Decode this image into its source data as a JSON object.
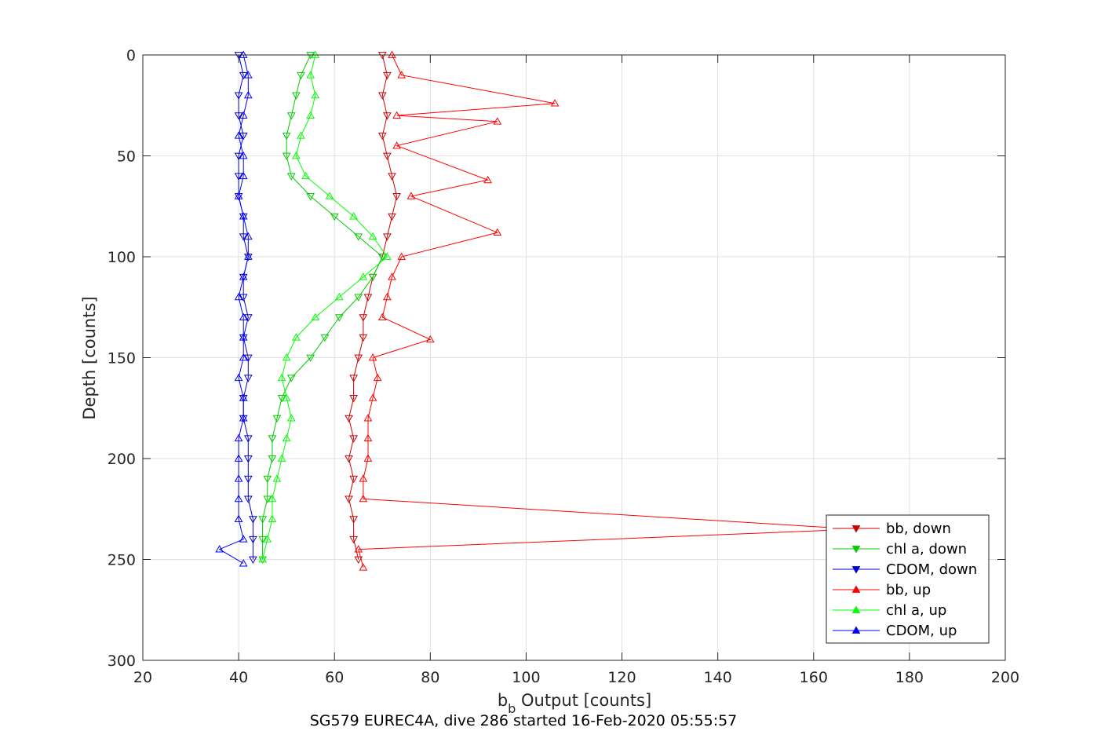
{
  "chart_data": {
    "type": "line",
    "xlabel": "b",
    "xlabel_sub": "b",
    "xlabel_rest": " Output [counts]",
    "ylabel": "Depth [counts]",
    "caption": "SG579 EUREC4A, dive 286 started 16-Feb-2020 05:55:57",
    "xlim": [
      20,
      200
    ],
    "ylim": [
      0,
      300
    ],
    "y_reversed": true,
    "grid": true,
    "legend_position": "bottom-right",
    "x_ticks": [
      "20",
      "40",
      "60",
      "80",
      "100",
      "120",
      "140",
      "160",
      "180",
      "200"
    ],
    "y_ticks": [
      "0",
      "50",
      "100",
      "150",
      "200",
      "250",
      "300"
    ],
    "series": [
      {
        "name": "bb, down",
        "color": "#cc0000",
        "marker": "triangle-down",
        "points": [
          [
            70,
            0
          ],
          [
            71,
            10
          ],
          [
            70,
            20
          ],
          [
            71,
            30
          ],
          [
            70,
            40
          ],
          [
            71,
            50
          ],
          [
            72,
            60
          ],
          [
            73,
            70
          ],
          [
            72,
            80
          ],
          [
            71,
            90
          ],
          [
            70,
            100
          ],
          [
            68,
            110
          ],
          [
            67,
            120
          ],
          [
            66,
            130
          ],
          [
            66,
            140
          ],
          [
            65,
            150
          ],
          [
            64,
            160
          ],
          [
            64,
            170
          ],
          [
            63,
            180
          ],
          [
            64,
            190
          ],
          [
            63,
            200
          ],
          [
            64,
            210
          ],
          [
            63,
            220
          ],
          [
            64,
            230
          ],
          [
            64,
            240
          ],
          [
            65,
            250
          ]
        ]
      },
      {
        "name": "chl a, down",
        "color": "#00cc00",
        "marker": "triangle-down",
        "points": [
          [
            55,
            0
          ],
          [
            53,
            10
          ],
          [
            52,
            20
          ],
          [
            51,
            30
          ],
          [
            50,
            40
          ],
          [
            50,
            50
          ],
          [
            51,
            60
          ],
          [
            55,
            70
          ],
          [
            60,
            80
          ],
          [
            65,
            90
          ],
          [
            70,
            100
          ],
          [
            68,
            110
          ],
          [
            65,
            120
          ],
          [
            61,
            130
          ],
          [
            58,
            140
          ],
          [
            55,
            150
          ],
          [
            51,
            160
          ],
          [
            49,
            170
          ],
          [
            48,
            180
          ],
          [
            47,
            190
          ],
          [
            47,
            200
          ],
          [
            46,
            210
          ],
          [
            46,
            220
          ],
          [
            45,
            230
          ],
          [
            45,
            240
          ],
          [
            45,
            250
          ]
        ]
      },
      {
        "name": "CDOM, down",
        "color": "#0000cc",
        "marker": "triangle-down",
        "points": [
          [
            40,
            0
          ],
          [
            41,
            10
          ],
          [
            40,
            20
          ],
          [
            40,
            30
          ],
          [
            41,
            40
          ],
          [
            40,
            50
          ],
          [
            40,
            60
          ],
          [
            40,
            70
          ],
          [
            41,
            80
          ],
          [
            41,
            90
          ],
          [
            42,
            100
          ],
          [
            41,
            110
          ],
          [
            41,
            120
          ],
          [
            42,
            130
          ],
          [
            41,
            140
          ],
          [
            42,
            150
          ],
          [
            42,
            160
          ],
          [
            41,
            170
          ],
          [
            41,
            180
          ],
          [
            42,
            190
          ],
          [
            42,
            200
          ],
          [
            42,
            210
          ],
          [
            42,
            220
          ],
          [
            43,
            230
          ],
          [
            43,
            240
          ],
          [
            43,
            250
          ]
        ]
      },
      {
        "name": "bb, up",
        "color": "#ff0000",
        "marker": "triangle-up",
        "points": [
          [
            72,
            0
          ],
          [
            74,
            10
          ],
          [
            106,
            24
          ],
          [
            73,
            30
          ],
          [
            94,
            33
          ],
          [
            73,
            45
          ],
          [
            92,
            62
          ],
          [
            76,
            70
          ],
          [
            94,
            88
          ],
          [
            74,
            100
          ],
          [
            72,
            110
          ],
          [
            71,
            120
          ],
          [
            70,
            130
          ],
          [
            80,
            141
          ],
          [
            68,
            150
          ],
          [
            69,
            160
          ],
          [
            68,
            170
          ],
          [
            67,
            180
          ],
          [
            67,
            190
          ],
          [
            67,
            200
          ],
          [
            66,
            210
          ],
          [
            66,
            220
          ],
          [
            169,
            235
          ],
          [
            65,
            245
          ],
          [
            66,
            254
          ]
        ]
      },
      {
        "name": "chl a, up",
        "color": "#00ff00",
        "marker": "triangle-up",
        "points": [
          [
            56,
            0
          ],
          [
            55,
            10
          ],
          [
            56,
            20
          ],
          [
            55,
            30
          ],
          [
            53,
            40
          ],
          [
            52,
            50
          ],
          [
            54,
            60
          ],
          [
            59,
            70
          ],
          [
            64,
            80
          ],
          [
            68,
            90
          ],
          [
            71,
            100
          ],
          [
            66,
            110
          ],
          [
            61,
            120
          ],
          [
            56,
            130
          ],
          [
            52,
            140
          ],
          [
            50,
            150
          ],
          [
            49,
            160
          ],
          [
            50,
            170
          ],
          [
            51,
            180
          ],
          [
            50,
            190
          ],
          [
            49,
            200
          ],
          [
            48,
            210
          ],
          [
            47,
            220
          ],
          [
            47,
            230
          ],
          [
            46,
            240
          ],
          [
            45,
            250
          ]
        ]
      },
      {
        "name": "CDOM, up",
        "color": "#0000ff",
        "marker": "triangle-up",
        "points": [
          [
            41,
            0
          ],
          [
            42,
            10
          ],
          [
            42,
            20
          ],
          [
            41,
            30
          ],
          [
            40,
            40
          ],
          [
            41,
            50
          ],
          [
            41,
            60
          ],
          [
            40,
            70
          ],
          [
            41,
            80
          ],
          [
            42,
            90
          ],
          [
            42,
            100
          ],
          [
            41,
            110
          ],
          [
            40,
            120
          ],
          [
            41,
            130
          ],
          [
            41,
            140
          ],
          [
            41,
            150
          ],
          [
            40,
            160
          ],
          [
            41,
            170
          ],
          [
            41,
            180
          ],
          [
            40,
            190
          ],
          [
            40,
            200
          ],
          [
            40,
            210
          ],
          [
            40,
            220
          ],
          [
            40,
            230
          ],
          [
            41,
            240
          ],
          [
            36,
            245
          ],
          [
            41,
            252
          ]
        ]
      }
    ]
  }
}
